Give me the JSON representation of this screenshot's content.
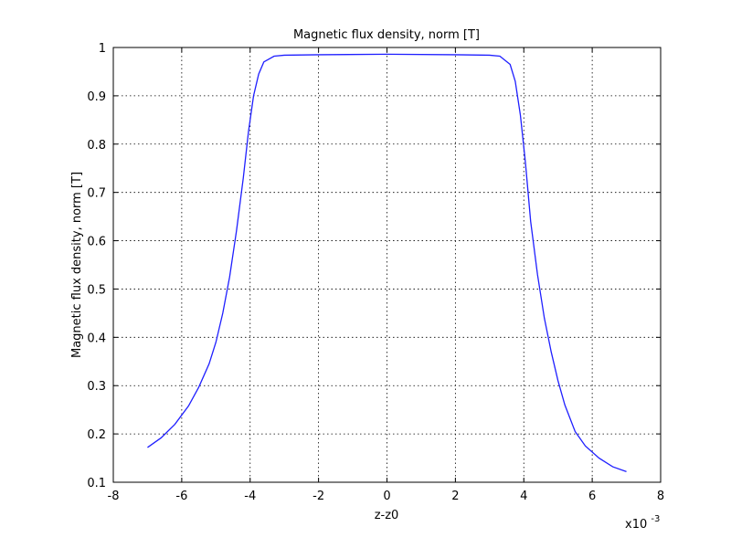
{
  "chart_data": {
    "type": "line",
    "title": "Magnetic flux density, norm [T]",
    "xlabel": "z-z0",
    "ylabel": "Magnetic flux density, norm [T]",
    "x_multiplier_base": "x10",
    "x_multiplier_exp": "-3",
    "xlim": [
      -8,
      8
    ],
    "ylim": [
      0.1,
      1.0
    ],
    "xticks": [
      -8,
      -6,
      -4,
      -2,
      0,
      2,
      4,
      6,
      8
    ],
    "xtick_labels": [
      "-8",
      "-6",
      "-4",
      "-2",
      "0",
      "2",
      "4",
      "6",
      "8"
    ],
    "yticks": [
      0.1,
      0.2,
      0.3,
      0.4,
      0.5,
      0.6,
      0.7,
      0.8,
      0.9,
      1.0
    ],
    "ytick_labels": [
      "0.1",
      "0.2",
      "0.3",
      "0.4",
      "0.5",
      "0.6",
      "0.7",
      "0.8",
      "0.9",
      "1"
    ],
    "grid": true,
    "line_color": "#1f1fff",
    "series": [
      {
        "x": [
          -7.0,
          -6.6,
          -6.2,
          -5.8,
          -5.5,
          -5.2,
          -5.0,
          -4.8,
          -4.6,
          -4.4,
          -4.2,
          -4.05,
          -3.9,
          -3.75,
          -3.6,
          -3.3,
          -3.0,
          -2.0,
          0.0,
          2.0,
          3.0,
          3.3,
          3.6,
          3.75,
          3.9,
          4.05,
          4.2,
          4.4,
          4.6,
          4.8,
          5.0,
          5.2,
          5.5,
          5.8,
          6.2,
          6.6,
          7.0
        ],
        "y": [
          0.172,
          0.192,
          0.22,
          0.258,
          0.297,
          0.345,
          0.39,
          0.45,
          0.525,
          0.62,
          0.73,
          0.825,
          0.9,
          0.945,
          0.97,
          0.982,
          0.984,
          0.985,
          0.986,
          0.985,
          0.984,
          0.982,
          0.965,
          0.93,
          0.86,
          0.76,
          0.64,
          0.53,
          0.44,
          0.37,
          0.31,
          0.26,
          0.205,
          0.175,
          0.15,
          0.132,
          0.122
        ]
      }
    ]
  }
}
